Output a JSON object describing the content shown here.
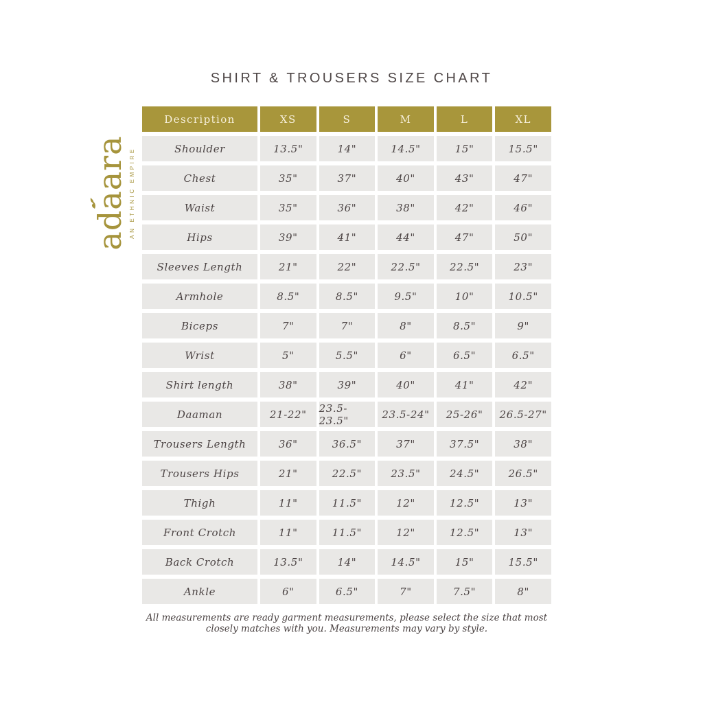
{
  "page": {
    "title": "SHIRT & TROUSERS SIZE CHART",
    "footnote_line1": "All measurements are ready garment measurements, please select the size that most",
    "footnote_line2": "closely matches with you. Measurements may vary by style."
  },
  "brand": {
    "name": "adaara",
    "tagline": "AN ETHNIC EMPIRE"
  },
  "colors": {
    "accent_gold": "#a8963b",
    "header_text": "#f6efda",
    "cell_bg": "#e9e8e6",
    "cell_text": "#4c4444",
    "title_text": "#4f4747"
  },
  "size_chart": {
    "columns": [
      "Description",
      "XS",
      "S",
      "M",
      "L",
      "XL"
    ],
    "rows": [
      {
        "label": "Shoulder",
        "values": [
          "13.5\"",
          "14\"",
          "14.5\"",
          "15\"",
          "15.5\""
        ]
      },
      {
        "label": "Chest",
        "values": [
          "35\"",
          "37\"",
          "40\"",
          "43\"",
          "47\""
        ]
      },
      {
        "label": "Waist",
        "values": [
          "35\"",
          "36\"",
          "38\"",
          "42\"",
          "46\""
        ]
      },
      {
        "label": "Hips",
        "values": [
          "39\"",
          "41\"",
          "44\"",
          "47\"",
          "50\""
        ]
      },
      {
        "label": "Sleeves Length",
        "values": [
          "21\"",
          "22\"",
          "22.5\"",
          "22.5\"",
          "23\""
        ]
      },
      {
        "label": "Armhole",
        "values": [
          "8.5\"",
          "8.5\"",
          "9.5\"",
          "10\"",
          "10.5\""
        ]
      },
      {
        "label": "Biceps",
        "values": [
          "7\"",
          "7\"",
          "8\"",
          "8.5\"",
          "9\""
        ]
      },
      {
        "label": "Wrist",
        "values": [
          "5\"",
          "5.5\"",
          "6\"",
          "6.5\"",
          "6.5\""
        ]
      },
      {
        "label": "Shirt length",
        "values": [
          "38\"",
          "39\"",
          "40\"",
          "41\"",
          "42\""
        ]
      },
      {
        "label": "Daaman",
        "values": [
          "21-22\"",
          "23.5-23.5\"",
          "23.5-24\"",
          "25-26\"",
          "26.5-27\""
        ]
      },
      {
        "label": "Trousers Length",
        "values": [
          "36\"",
          "36.5\"",
          "37\"",
          "37.5\"",
          "38\""
        ]
      },
      {
        "label": "Trousers Hips",
        "values": [
          "21\"",
          "22.5\"",
          "23.5\"",
          "24.5\"",
          "26.5\""
        ]
      },
      {
        "label": "Thigh",
        "values": [
          "11\"",
          "11.5\"",
          "12\"",
          "12.5\"",
          "13\""
        ]
      },
      {
        "label": "Front Crotch",
        "values": [
          "11\"",
          "11.5\"",
          "12\"",
          "12.5\"",
          "13\""
        ]
      },
      {
        "label": "Back Crotch",
        "values": [
          "13.5\"",
          "14\"",
          "14.5\"",
          "15\"",
          "15.5\""
        ]
      },
      {
        "label": "Ankle",
        "values": [
          "6\"",
          "6.5\"",
          "7\"",
          "7.5\"",
          "8\""
        ]
      }
    ]
  }
}
